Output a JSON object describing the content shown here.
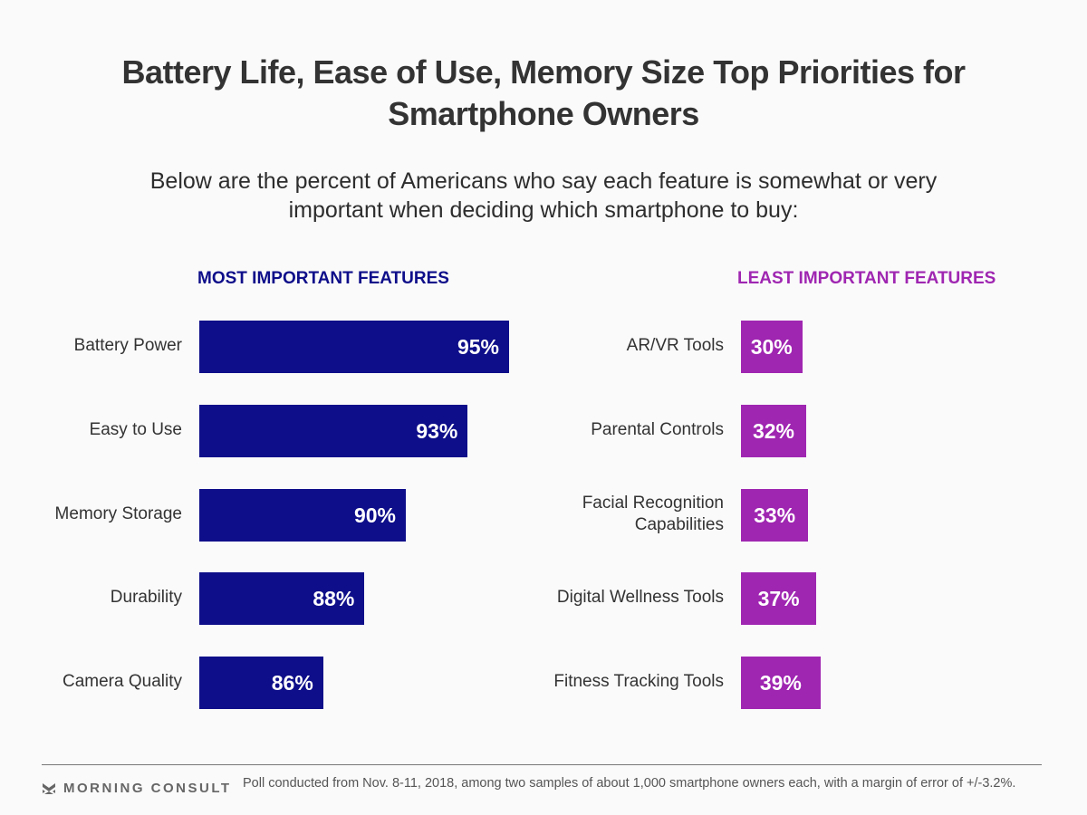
{
  "header": {
    "title_line1": "Battery Life, Ease of Use, Memory Size Top Priorities for",
    "title_line2": "Smartphone Owners",
    "subtitle_line1": "Below are the percent of Americans who say each feature is somewhat or very",
    "subtitle_line2": "important when deciding which smartphone to buy:"
  },
  "footer": {
    "brand": "MORNING CONSULT",
    "brand_icon": "morning-consult-chevron-logo",
    "note": "Poll conducted from Nov. 8-11, 2018, among two samples of about 1,000 smartphone owners each, with a margin of error of +/-3.2%."
  },
  "colors": {
    "most_important": "#0e0e8a",
    "least_important": "#9f26b1"
  },
  "chart_data": [
    {
      "type": "bar",
      "orientation": "horizontal",
      "title": "MOST IMPORTANT FEATURES",
      "categories": [
        "Battery Power",
        "Easy to Use",
        "Memory Storage",
        "Durability",
        "Camera Quality"
      ],
      "values": [
        95,
        93,
        90,
        88,
        86
      ],
      "value_labels": [
        "95%",
        "93%",
        "90%",
        "88%",
        "86%"
      ],
      "unit": "%",
      "xlim": [
        80,
        100
      ],
      "grid": false,
      "legend": "none"
    },
    {
      "type": "bar",
      "orientation": "horizontal",
      "title": "LEAST IMPORTANT FEATURES",
      "categories": [
        "AR/VR Tools",
        "Parental Controls",
        "Facial Recognition Capabilities",
        "Digital Wellness Tools",
        "Fitness Tracking Tools"
      ],
      "category_lines": [
        [
          "AR/VR Tools"
        ],
        [
          "Parental Controls"
        ],
        [
          "Facial Recognition",
          "Capabilities"
        ],
        [
          "Digital Wellness Tools"
        ],
        [
          "Fitness Tracking Tools"
        ]
      ],
      "values": [
        30,
        32,
        33,
        37,
        39
      ],
      "value_labels": [
        "30%",
        "32%",
        "33%",
        "37%",
        "39%"
      ],
      "unit": "%",
      "xlim": [
        0,
        100
      ],
      "grid": false,
      "legend": "none"
    }
  ]
}
